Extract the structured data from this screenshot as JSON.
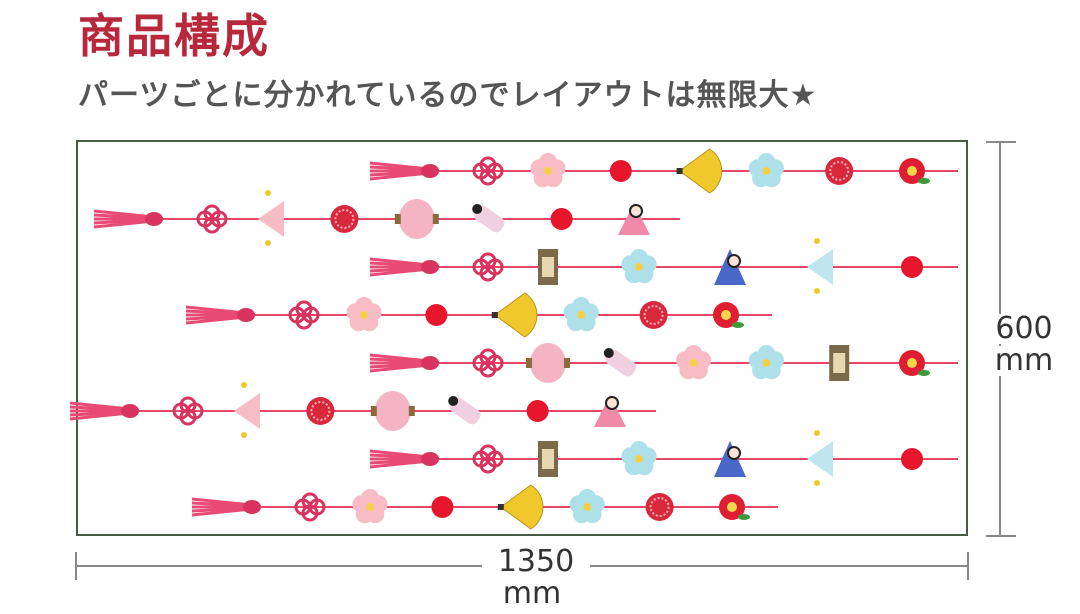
{
  "header": {
    "title": "商品構成",
    "subtitle": "パーツごとに分かれているのでレイアウトは無限大★"
  },
  "dimensions": {
    "width_value": "1350",
    "width_unit": "mm",
    "height_value": "600",
    "height_unit": "mm"
  },
  "colors": {
    "title": "#b8283c",
    "subtitle": "#555555",
    "string": "#e8456b",
    "frame": "#4a5a44",
    "dimension_line": "#888888"
  },
  "strands": [
    {
      "icons": [
        "tassel-icon",
        "knot-icon",
        "plum-blossom-icon",
        "red-ball-icon",
        "folding-fan-icon",
        "blue-blossom-icon",
        "temari-ball-icon",
        "camellia-icon"
      ]
    },
    {
      "icons": [
        "tassel-icon",
        "knot-icon",
        "paper-lantern-icon",
        "temari-ball-icon",
        "pink-lantern-icon",
        "kimono-doll-icon",
        "red-ball-icon",
        "princess-doll-icon"
      ]
    },
    {
      "icons": [
        "tassel-icon",
        "knot-icon",
        "lantern-stand-icon",
        "blue-blossom-icon",
        "emperor-doll-icon",
        "blue-paper-lantern-icon",
        "red-ball-icon"
      ]
    },
    {
      "icons": [
        "tassel-icon",
        "knot-icon",
        "plum-blossom-icon",
        "red-ball-icon",
        "folding-fan-icon",
        "blue-blossom-icon",
        "temari-ball-icon",
        "camellia-icon"
      ]
    },
    {
      "icons": [
        "tassel-icon",
        "knot-icon",
        "pink-lantern-icon",
        "kimono-doll-icon",
        "plum-blossom-icon",
        "blue-blossom-icon",
        "lantern-stand-icon",
        "camellia-icon"
      ]
    },
    {
      "icons": [
        "tassel-icon",
        "knot-icon",
        "paper-lantern-icon",
        "temari-ball-icon",
        "pink-lantern-icon",
        "kimono-doll-icon",
        "red-ball-icon",
        "princess-doll-icon"
      ]
    },
    {
      "icons": [
        "tassel-icon",
        "knot-icon",
        "lantern-stand-icon",
        "blue-blossom-icon",
        "emperor-doll-icon",
        "blue-paper-lantern-icon",
        "red-ball-icon"
      ]
    },
    {
      "icons": [
        "tassel-icon",
        "knot-icon",
        "plum-blossom-icon",
        "red-ball-icon",
        "folding-fan-icon",
        "blue-blossom-icon",
        "temari-ball-icon",
        "camellia-icon"
      ]
    }
  ]
}
